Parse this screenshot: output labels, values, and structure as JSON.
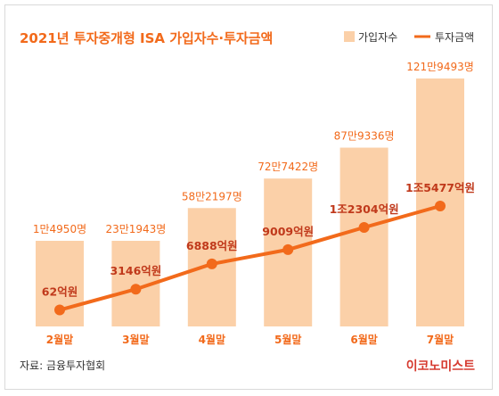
{
  "colors": {
    "bar": "#fbd0a8",
    "line": "#f26a1b",
    "title": "#f26a1b",
    "bar_label": "#f26a1b",
    "line_label": "#c0391b",
    "category": "#f26a1b",
    "text": "#333333",
    "brand": "#d63a2f"
  },
  "source": "자료: 금융투자협회",
  "brand": "이코노미스트",
  "chart_data": {
    "type": "bar",
    "title": "2021년 투자중개형 ISA 가입자수·투자금액",
    "categories": [
      "2월말",
      "3월말",
      "4월말",
      "5월말",
      "6월말",
      "7월말"
    ],
    "series": [
      {
        "name": "가입자수",
        "type": "bar",
        "values": [
          14950,
          231943,
          582197,
          727422,
          879336,
          1219493
        ],
        "labels": [
          "1만4950명",
          "23만1943명",
          "58만2197명",
          "72만7422명",
          "87만9336명",
          "121만9493명"
        ]
      },
      {
        "name": "투자금액",
        "type": "line",
        "values": [
          62,
          3146,
          6888,
          9009,
          12304,
          15477
        ],
        "labels": [
          "62억원",
          "3146억원",
          "6888억원",
          "9009억원",
          "1조2304억원",
          "1조5477억원"
        ]
      }
    ],
    "legend": "top-right",
    "grid": false
  }
}
